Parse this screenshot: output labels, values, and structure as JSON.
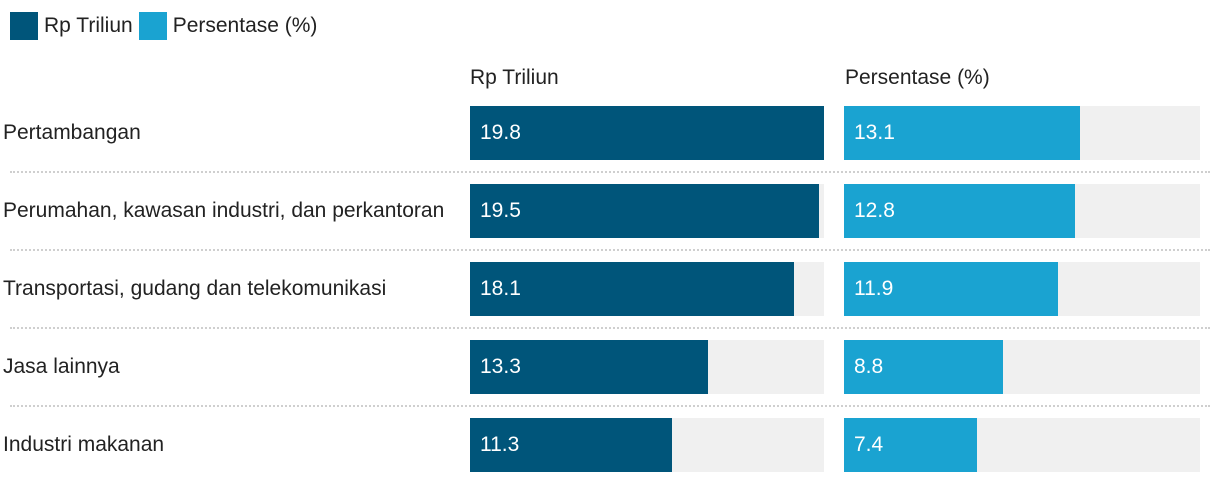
{
  "legend": [
    {
      "label": "Rp Triliun",
      "color": "#00557a"
    },
    {
      "label": "Persentase (%)",
      "color": "#1aa3d1"
    }
  ],
  "chart_data": {
    "type": "bar",
    "orientation": "horizontal",
    "categories": [
      "Pertambangan",
      "Perumahan, kawasan industri, dan perkantoran",
      "Transportasi, gudang dan telekomunikasi",
      "Jasa lainnya",
      "Industri makanan"
    ],
    "series": [
      {
        "name": "Rp Triliun",
        "values": [
          19.8,
          19.5,
          18.1,
          13.3,
          11.3
        ],
        "color": "#00557a"
      },
      {
        "name": "Persentase (%)",
        "values": [
          13.1,
          12.8,
          11.9,
          8.8,
          7.4
        ],
        "color": "#1aa3d1"
      }
    ],
    "grid": false,
    "legend_position": "top-left"
  }
}
